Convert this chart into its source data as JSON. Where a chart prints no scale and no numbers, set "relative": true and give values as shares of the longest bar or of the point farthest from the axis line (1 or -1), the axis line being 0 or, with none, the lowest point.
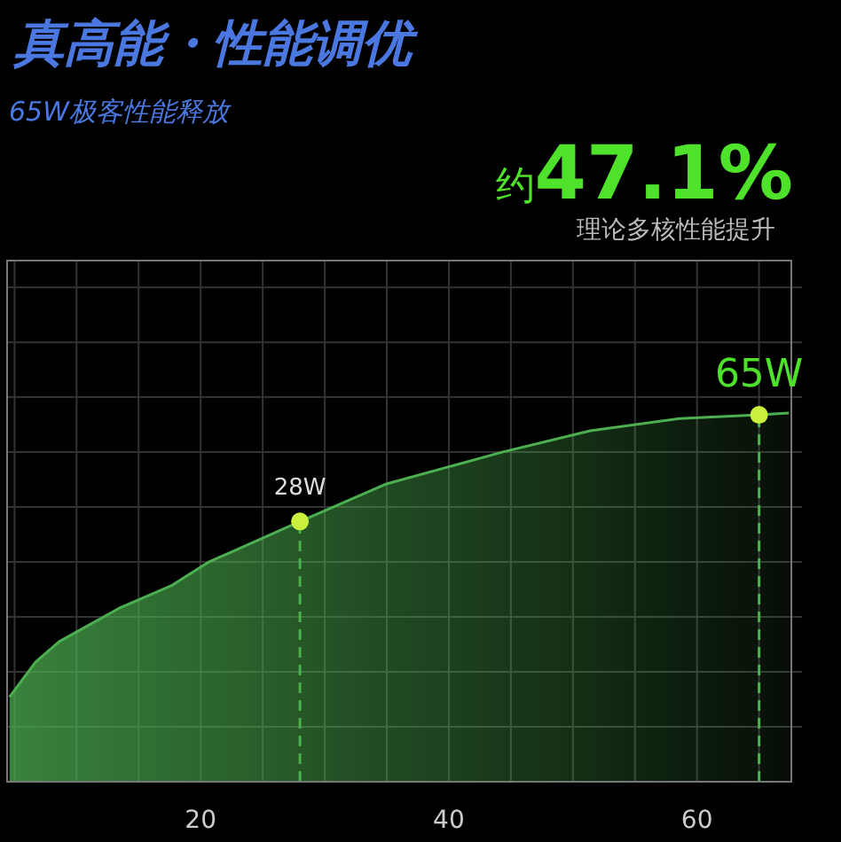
{
  "chart_data": {
    "type": "area",
    "title": "真高能・性能调优",
    "subtitle": "65W极客性能释放",
    "relative": true,
    "xlim": [
      4.4,
      67.6
    ],
    "xticks": [
      {
        "value": 5,
        "label": null
      },
      {
        "value": 10,
        "label": null
      },
      {
        "value": 15,
        "label": null
      },
      20,
      {
        "value": 25,
        "label": null
      },
      {
        "value": 30,
        "label": null
      },
      {
        "value": 35,
        "label": null
      },
      40,
      {
        "value": 45,
        "label": null
      },
      {
        "value": 50,
        "label": null
      },
      {
        "value": 55,
        "label": null
      },
      60,
      {
        "value": 65,
        "label": null
      }
    ],
    "grid": true,
    "series": [
      {
        "color": "#4caf50",
        "x": [
          4.6,
          6.7,
          8.6,
          13.4,
          17.7,
          20.6,
          28,
          34.9,
          44.3,
          51.4,
          58.6,
          65,
          67.4
        ],
        "values": [
          0.23,
          0.325,
          0.38,
          0.47,
          0.533,
          0.595,
          0.706,
          0.807,
          0.894,
          0.952,
          0.985,
          0.995,
          1
        ]
      },
      {
        "type": "scatter",
        "color": "#c8f03c",
        "marker": "circle",
        "x": [
          28,
          65
        ],
        "values": [
          0.706,
          0.995
        ]
      }
    ],
    "ref_lines": [
      {
        "axis": "x",
        "value": 28,
        "color": "#4caf50",
        "line_style": "dashed"
      },
      {
        "axis": "x",
        "value": 65,
        "color": "#4caf50",
        "line_style": "dashed"
      }
    ],
    "annotations": [
      "约",
      "47.1%",
      "理论多核性能提升",
      {
        "text": "28W",
        "x": 28,
        "y": 0.706
      },
      {
        "text": "65W",
        "x": 65,
        "y": 0.995
      }
    ]
  }
}
